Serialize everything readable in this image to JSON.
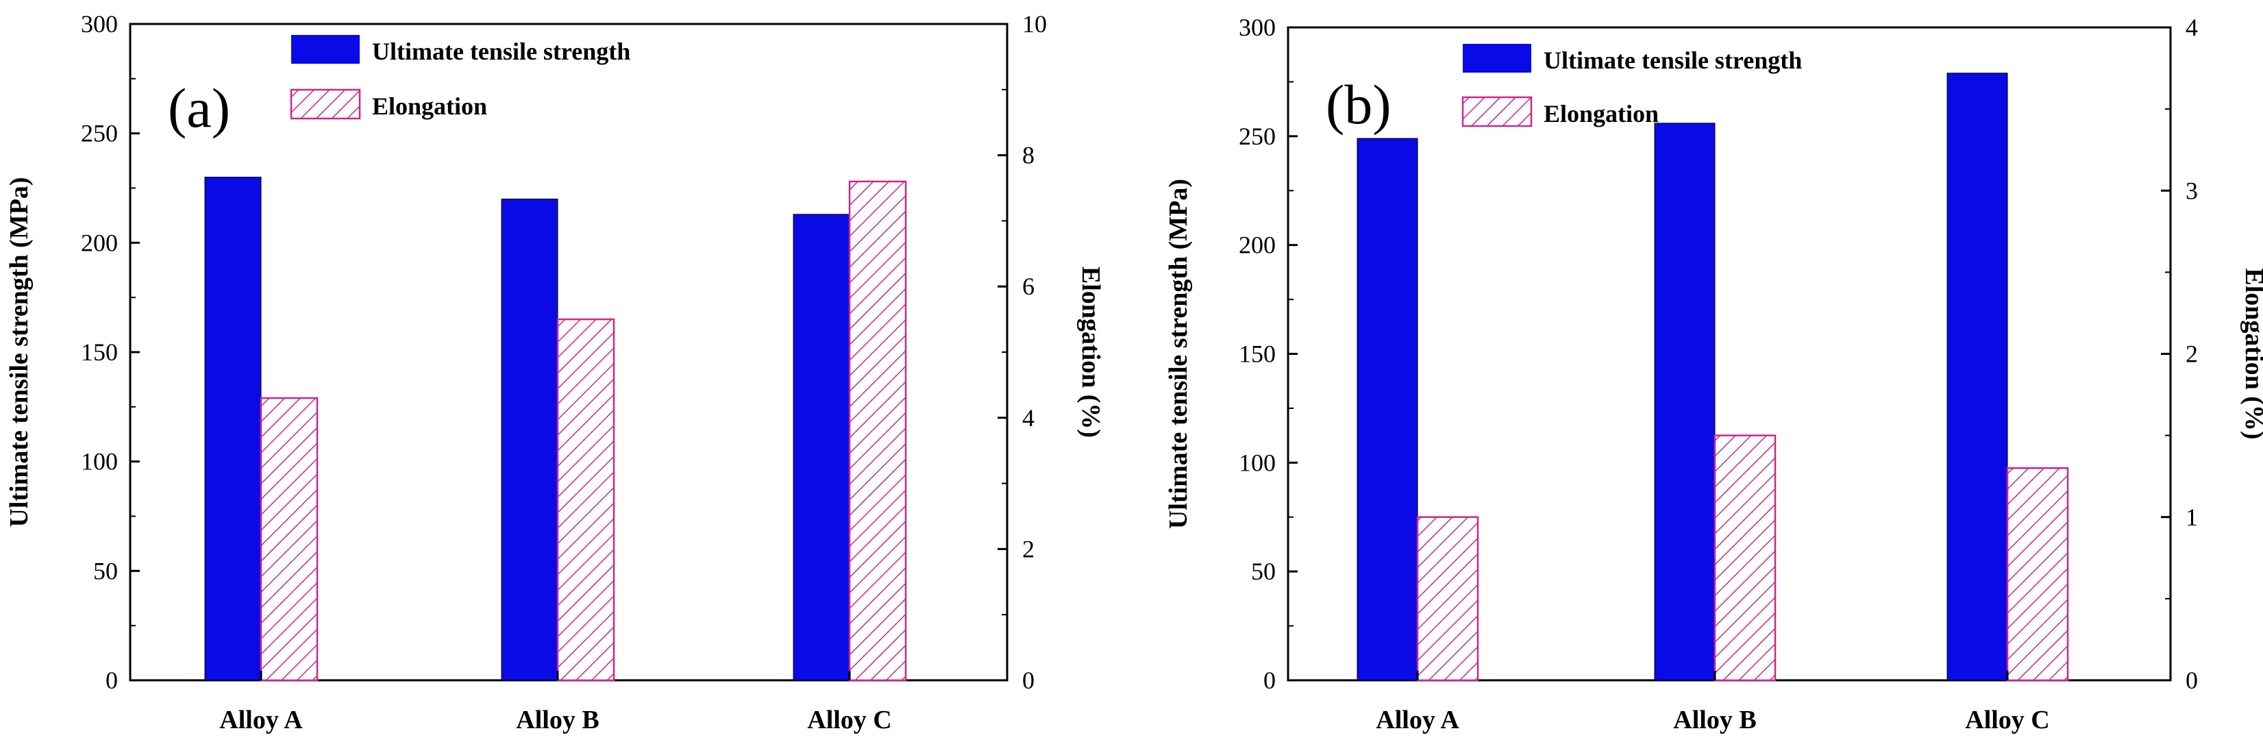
{
  "chart_data": [
    {
      "type": "bar",
      "panel": "(a)",
      "categories": [
        "Alloy A",
        "Alloy B",
        "Alloy C"
      ],
      "series": [
        {
          "name": "Ultimate tensile strength",
          "axis": "left",
          "color": "#0a0ae6",
          "fill": "solid",
          "values": [
            230,
            220,
            213
          ]
        },
        {
          "name": "Elongation",
          "axis": "right",
          "color": "#c8288c",
          "fill": "hatched",
          "values": [
            4.3,
            5.5,
            7.6
          ]
        }
      ],
      "ylabel": "Ultimate tensile strength (MPa)",
      "y2label": "Elongation (%)",
      "ylim": [
        0,
        300
      ],
      "y2lim": [
        0,
        10
      ],
      "yticks": [
        0,
        50,
        100,
        150,
        200,
        250,
        300
      ],
      "y2ticks": [
        0,
        2,
        4,
        6,
        8,
        10
      ],
      "legend_position": "top-left"
    },
    {
      "type": "bar",
      "panel": "(b)",
      "categories": [
        "Alloy A",
        "Alloy B",
        "Alloy C"
      ],
      "series": [
        {
          "name": "Ultimate tensile strength",
          "axis": "left",
          "color": "#0a0ae6",
          "fill": "solid",
          "values": [
            249,
            256,
            279
          ]
        },
        {
          "name": "Elongation",
          "axis": "right",
          "color": "#c8288c",
          "fill": "hatched",
          "values": [
            1.0,
            1.5,
            1.3
          ]
        }
      ],
      "ylabel": "Ultimate tensile strength (MPa)",
      "y2label": "Elongation (%)",
      "ylim": [
        0,
        300
      ],
      "y2lim": [
        0,
        4
      ],
      "yticks": [
        0,
        50,
        100,
        150,
        200,
        250,
        300
      ],
      "y2ticks": [
        0,
        1,
        2,
        3,
        4
      ],
      "legend_position": "top-left"
    }
  ]
}
